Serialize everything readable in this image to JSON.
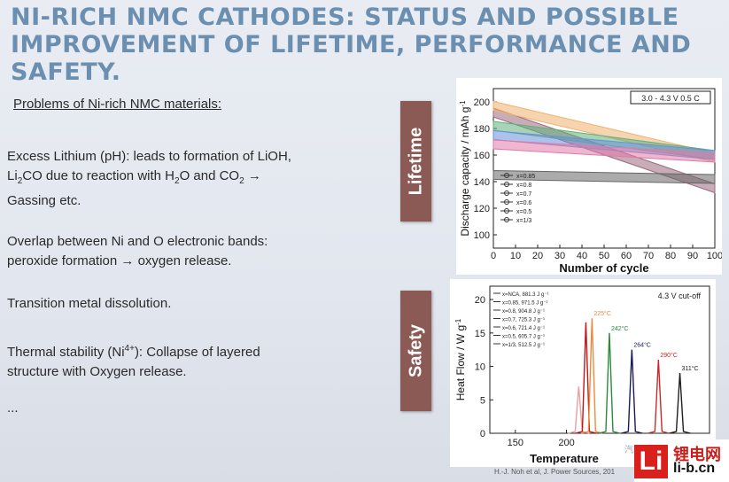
{
  "title": {
    "line1": "NI-RICH NMC CATHODES: STATUS AND POSSIBLE",
    "line2": "IMPROVEMENT OF LIFETIME, PERFORMANCE AND SAFETY."
  },
  "left": {
    "subtitle": "Problems of Ni-rich NMC materials:",
    "item1a": "Excess Lithium (pH): leads to formation of LiOH,",
    "item1b": "Li",
    "item1b_sub1": "2",
    "item1b_mid": "CO due to reaction with H",
    "item1b_sub2": "2",
    "item1b_mid2": "O and CO",
    "item1b_sub3": "2",
    "item1b_end": " →",
    "item1c": "Gassing etc.",
    "item2a": "Overlap between Ni and O electronic bands:",
    "item2b": "peroxide formation → oxygen release.",
    "item3": "Transition metal dissolution.",
    "item4a": "Thermal stability (Ni",
    "item4a_sup": "4+",
    "item4a_end": "): Collapse of layered",
    "item4b": "structure with Oxygen release.",
    "ellipsis": "..."
  },
  "tabs": {
    "lifetime": "Lifetime",
    "safety": "Safety"
  },
  "top_chart": {
    "condition_label": "3.0 - 4.3 V  0.5 C",
    "legend": [
      "x=0.85",
      "x=0.8",
      "x=0.7",
      "x=0.6",
      "x=0.5",
      "x=1/3"
    ]
  },
  "bottom_chart": {
    "condition_label": "4.3 V cut-off",
    "legend": [
      "x=NCA, 881.3 J g⁻¹",
      "x=0.85, 971.5 J g⁻¹",
      "x=0.8, 904.8 J g⁻¹",
      "x=0.7, 725.3 J g⁻¹",
      "x=0.6, 721.4 J g⁻¹",
      "x=0.5, 605.7 J g⁻¹",
      "x=1/3, 512.5 J g⁻¹"
    ]
  },
  "chart_data": [
    {
      "type": "line",
      "xlabel": "Number of cycle",
      "ylabel": "Discharge capacity / mAh g",
      "ylabel_sup": "-1",
      "xlim": [
        0,
        100
      ],
      "ylim": [
        90,
        210
      ],
      "xticks": [
        0,
        10,
        20,
        30,
        40,
        50,
        60,
        70,
        80,
        90,
        100
      ],
      "yticks": [
        100,
        120,
        140,
        160,
        180,
        200
      ],
      "x": [
        0,
        100
      ],
      "series": [
        {
          "name": "x=0.85",
          "color": "#9b6a7e",
          "values": [
            192,
            135
          ]
        },
        {
          "name": "x=0.8",
          "color": "#f0b070",
          "values": [
            197,
            158
          ]
        },
        {
          "name": "x=0.7",
          "color": "#5fb07a",
          "values": [
            182,
            160
          ]
        },
        {
          "name": "x=0.6",
          "color": "#6a8fd8",
          "values": [
            175,
            160
          ]
        },
        {
          "name": "x=0.5",
          "color": "#e07aa8",
          "values": [
            168,
            158
          ]
        },
        {
          "name": "x=1/3",
          "color": "#666666",
          "values": [
            145,
            142
          ]
        }
      ]
    },
    {
      "type": "line",
      "xlabel": "Temperature",
      "ylabel": "Heat Flow  /  W g",
      "ylabel_sup": "-1",
      "xlim": [
        125,
        340
      ],
      "ylim": [
        0,
        22
      ],
      "xticks": [
        150,
        200
      ],
      "xtick_labels": [
        "150",
        "200"
      ],
      "yticks": [
        0,
        5,
        10,
        15,
        20
      ],
      "peaks": [
        {
          "name": "x=NCA",
          "color": "#e8a0a0",
          "temp": 212,
          "height": 7,
          "label": ""
        },
        {
          "name": "x=0.85",
          "color": "#c01818",
          "temp": 219,
          "height": 16.6,
          "label": ""
        },
        {
          "name": "x=0.8",
          "color": "#f08a3a",
          "temp": 225,
          "height": 17.2,
          "label": "225°C"
        },
        {
          "name": "x=0.7",
          "color": "#2a8a3a",
          "temp": 242,
          "height": 15,
          "label": "242°C"
        },
        {
          "name": "x=0.6",
          "color": "#1a1a5a",
          "temp": 264,
          "height": 12.5,
          "label": "264°C"
        },
        {
          "name": "x=0.5",
          "color": "#c82a2a",
          "temp": 290,
          "height": 11,
          "label": "290°C"
        },
        {
          "name": "x=1/3",
          "color": "#1e1e1e",
          "temp": 311,
          "height": 9,
          "label": "311°C"
        }
      ]
    }
  ],
  "source": "H.-J. Noh et al, J. Power Sources, 201",
  "logo": {
    "mark": "Li",
    "cn": "锂电网",
    "domain": "li-b.cn"
  },
  "watermark": "汽车"
}
